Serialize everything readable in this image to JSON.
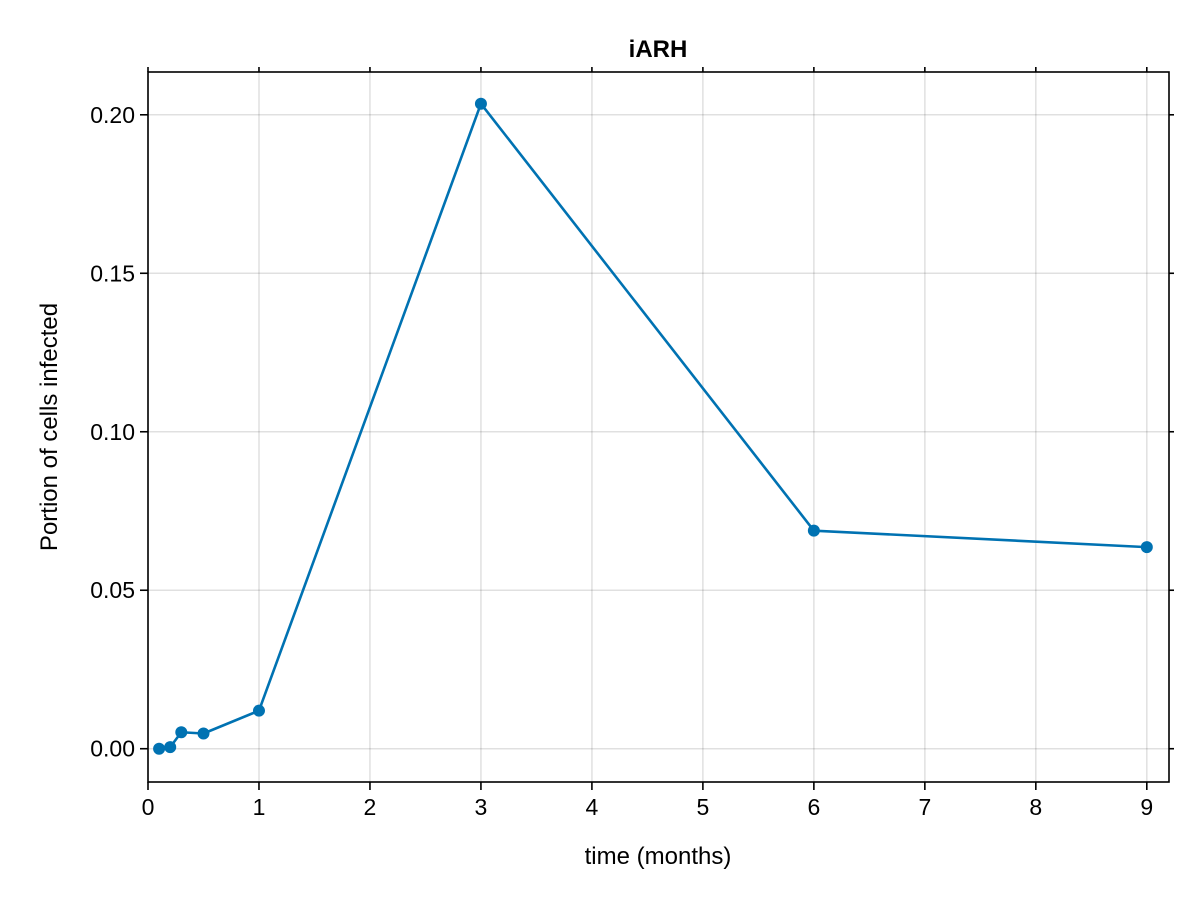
{
  "chart_data": {
    "type": "line",
    "title": "iARH",
    "xlabel": "time (months)",
    "ylabel": "Portion of cells infected",
    "xlim": [
      0,
      9.2
    ],
    "ylim": [
      -0.0105,
      0.2135
    ],
    "xticks": [
      0,
      1,
      2,
      3,
      4,
      5,
      6,
      7,
      8,
      9
    ],
    "xtick_labels": [
      "0",
      "1",
      "2",
      "3",
      "4",
      "5",
      "6",
      "7",
      "8",
      "9"
    ],
    "yticks": [
      0.0,
      0.05,
      0.1,
      0.15,
      0.2
    ],
    "ytick_labels": [
      "0.00",
      "0.05",
      "0.10",
      "0.15",
      "0.20"
    ],
    "grid": true,
    "markers": true,
    "series": [
      {
        "color": "#0072b2",
        "x": [
          0.1,
          0.2,
          0.3,
          0.5,
          1,
          3,
          6,
          9
        ],
        "y": [
          0.0,
          0.0005,
          0.0052,
          0.0048,
          0.012,
          0.2035,
          0.0688,
          0.0636
        ]
      }
    ]
  }
}
